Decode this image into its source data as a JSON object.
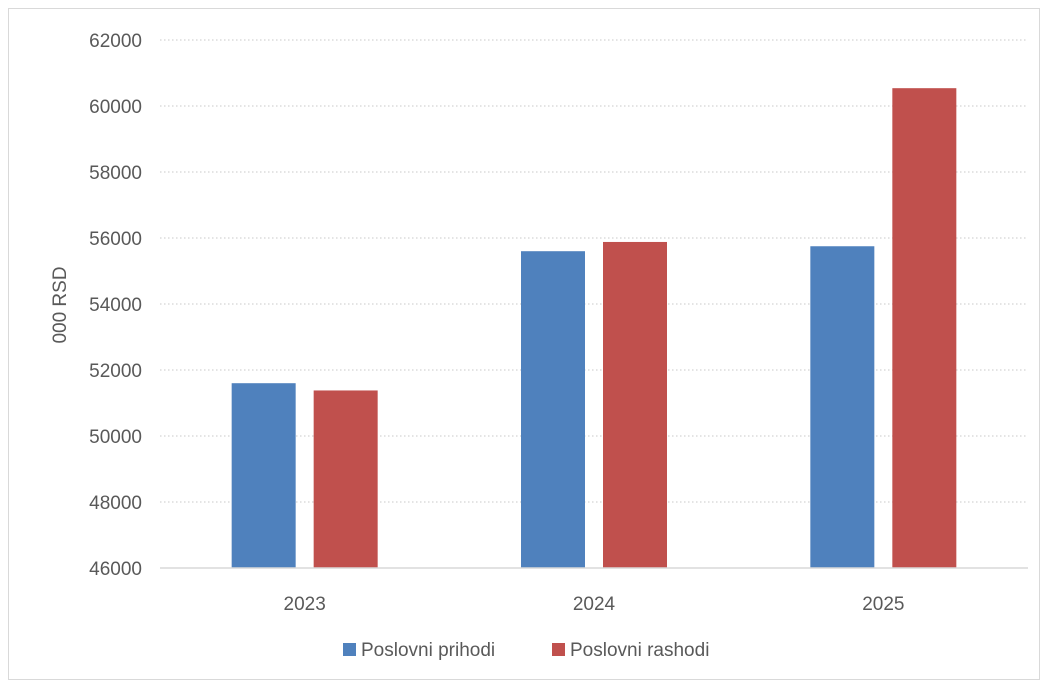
{
  "chart_data": {
    "type": "bar",
    "categories": [
      "2023",
      "2024",
      "2025"
    ],
    "series": [
      {
        "name": "Poslovni prihodi",
        "color": "#4f81bd",
        "values": [
          51600,
          55600,
          55750
        ]
      },
      {
        "name": "Poslovni rashodi",
        "color": "#c0504d",
        "values": [
          51380,
          55880,
          60540
        ]
      }
    ],
    "ylabel": "000 RSD",
    "xlabel": "",
    "ylim": [
      46000,
      62000
    ],
    "yticks": [
      46000,
      48000,
      50000,
      52000,
      54000,
      56000,
      58000,
      60000,
      62000
    ],
    "grid": true,
    "grid_style": "dotted",
    "legend_position": "bottom"
  }
}
